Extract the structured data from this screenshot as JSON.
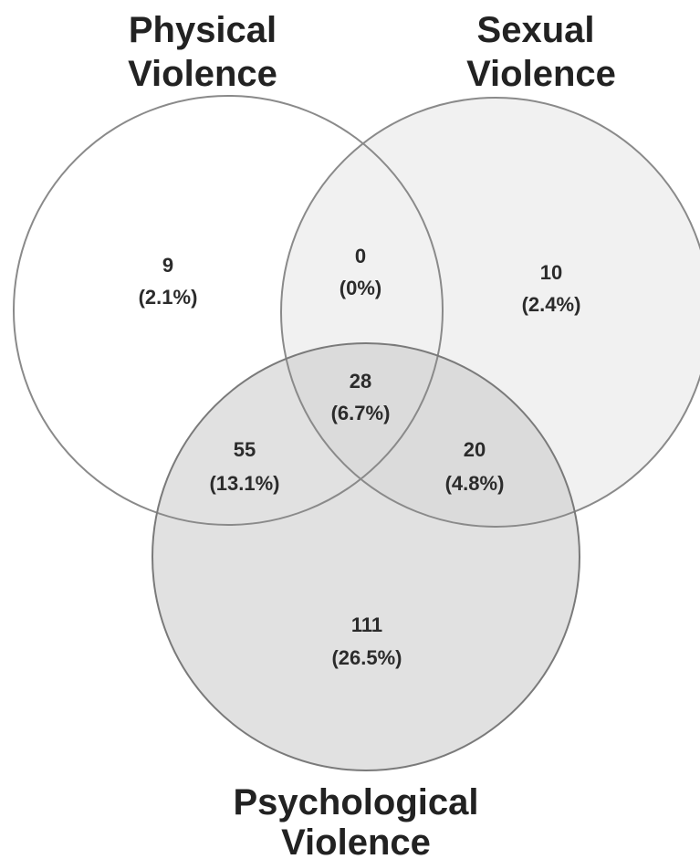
{
  "sets": {
    "physical": {
      "title_line1": "Physical",
      "title_line2": "Violence",
      "fill": "#ffffff",
      "stroke": "#8a8a8a"
    },
    "sexual": {
      "title_line1": "Sexual",
      "title_line2": "Violence",
      "fill": "#e6e6e6",
      "stroke": "#8a8a8a"
    },
    "psychological": {
      "title_line1": "Psychological",
      "title_line2": "Violence",
      "fill": "#c9c9c9",
      "stroke": "#7a7a7a"
    }
  },
  "regions": {
    "physical_only": {
      "count": "9",
      "pct": "(2.1%)"
    },
    "physical_sexual": {
      "count": "0",
      "pct": "(0%)"
    },
    "sexual_only": {
      "count": "10",
      "pct": "(2.4%)"
    },
    "all_three": {
      "count": "28",
      "pct": "(6.7%)"
    },
    "physical_psychological": {
      "count": "55",
      "pct": "(13.1%)"
    },
    "sexual_psychological": {
      "count": "20",
      "pct": "(4.8%)"
    },
    "psychological_only": {
      "count": "111",
      "pct": "(26.5%)"
    }
  }
}
